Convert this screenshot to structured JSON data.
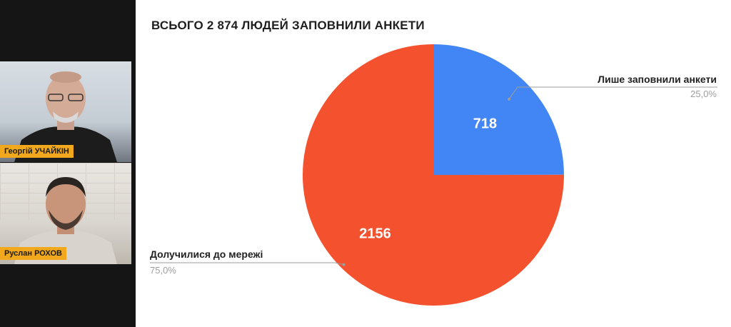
{
  "participants": [
    {
      "name": "Георгій УЧАЙКІН"
    },
    {
      "name": "Руслан РОХОВ"
    }
  ],
  "slide": {
    "title": "ВСЬОГО 2 874 ЛЮДЕЙ ЗАПОВНИЛИ АНКЕТИ"
  },
  "chart_data": {
    "type": "pie",
    "title": "ВСЬОГО 2 874 ЛЮДЕЙ ЗАПОВНИЛИ АНКЕТИ",
    "slices": [
      {
        "label": "Лише заповнили анкети",
        "value": 718,
        "value_label": "718",
        "percent": "25,0%",
        "color": "#4285f4"
      },
      {
        "label": "Долучилися до мережі",
        "value": 2156,
        "value_label": "2156",
        "percent": "75,0%",
        "color": "#f4522f"
      }
    ]
  }
}
